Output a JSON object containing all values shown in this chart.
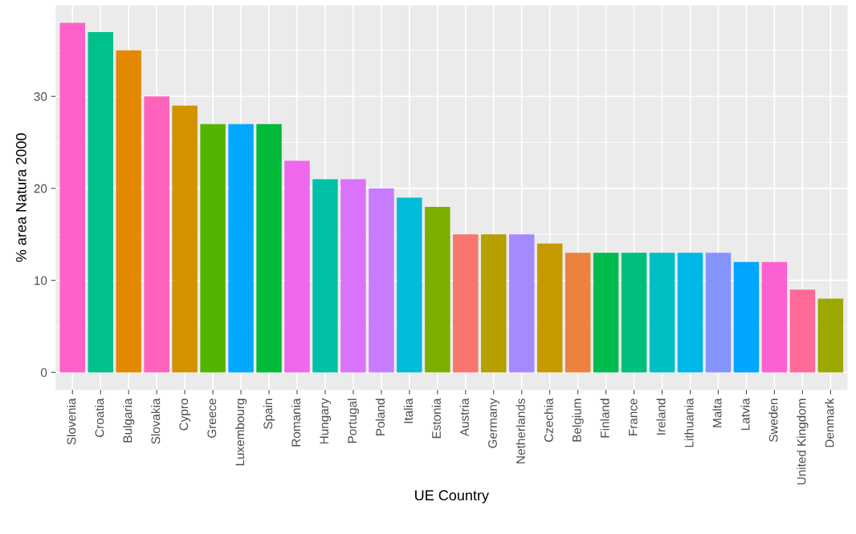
{
  "chart_data": {
    "type": "bar",
    "xlabel": "UE Country",
    "ylabel": "% area Natura 2000",
    "categories": [
      "Slovenia",
      "Croatia",
      "Bulgaria",
      "Slovakia",
      "Cypro",
      "Greece",
      "Luxembourg",
      "Spain",
      "Romania",
      "Hungary",
      "Portugal",
      "Poland",
      "Italia",
      "Estonia",
      "Austria",
      "Germany",
      "Netherlands",
      "Czechia",
      "Belgium",
      "Finland",
      "France",
      "Ireland",
      "Lithuania",
      "Malta",
      "Latvia",
      "Sweden",
      "United Kingdom",
      "Denmark"
    ],
    "values": [
      38,
      37,
      35,
      30,
      29,
      27,
      27,
      27,
      23,
      21,
      21,
      20,
      19,
      18,
      15,
      15,
      15,
      14,
      13,
      13,
      13,
      13,
      13,
      13,
      12,
      12,
      9,
      8
    ],
    "colors": [
      "#ff61c9",
      "#00c08b",
      "#e38900",
      "#ff62bc",
      "#d39200",
      "#53b400",
      "#00a9ff",
      "#00ba38",
      "#ef67eb",
      "#00c1a7",
      "#db72fb",
      "#c77cff",
      "#00bcd8",
      "#7cae00",
      "#f8766d",
      "#b79f00",
      "#a58aff",
      "#c49a00",
      "#ed813e",
      "#00bb4e",
      "#00bf7d",
      "#00bfc4",
      "#00b8e7",
      "#8494ff",
      "#00a5ff",
      "#fd61d1",
      "#ff6a98",
      "#9ca700"
    ],
    "ylim": [
      -1.9,
      39.9
    ],
    "yticks": [
      0,
      10,
      20,
      30
    ],
    "grid": true,
    "legend": false
  }
}
